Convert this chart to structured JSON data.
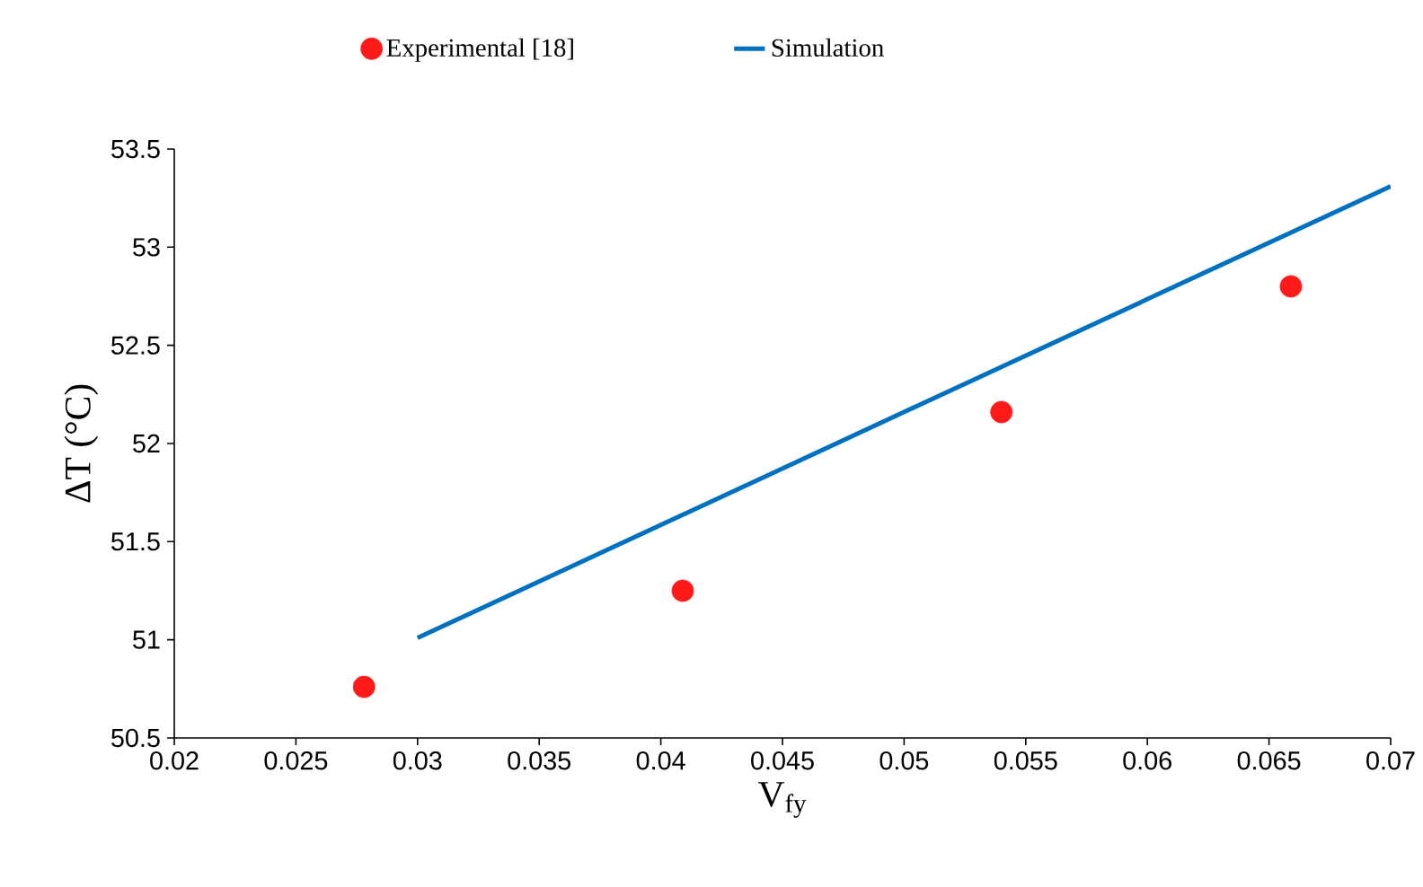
{
  "chart_data": {
    "type": "scatter",
    "xlabel": "V$_{fy}$",
    "ylabel": "ΔT (°C)",
    "xlim": [
      0.02,
      0.07
    ],
    "xticks": [
      0.02,
      0.025,
      0.03,
      0.035,
      0.04,
      0.045,
      0.05,
      0.055,
      0.06,
      0.065,
      0.07
    ],
    "ylim": [
      50.5,
      53.5
    ],
    "yticks": [
      50.5,
      51,
      51.5,
      52,
      52.5,
      53,
      53.5
    ],
    "grid": false,
    "legend": "top",
    "series": [
      {
        "name": "Experimental [18]",
        "marker": "circle",
        "color": "#ff1a1a",
        "x": [
          0.0278,
          0.0409,
          0.054,
          0.0659
        ],
        "values": [
          50.76,
          51.25,
          52.16,
          52.8
        ]
      },
      {
        "name": "Simulation",
        "type": "line",
        "marker": "none",
        "color": "#0070c0",
        "x": [
          0.03,
          0.07
        ],
        "values": [
          51.01,
          53.31
        ]
      }
    ]
  }
}
